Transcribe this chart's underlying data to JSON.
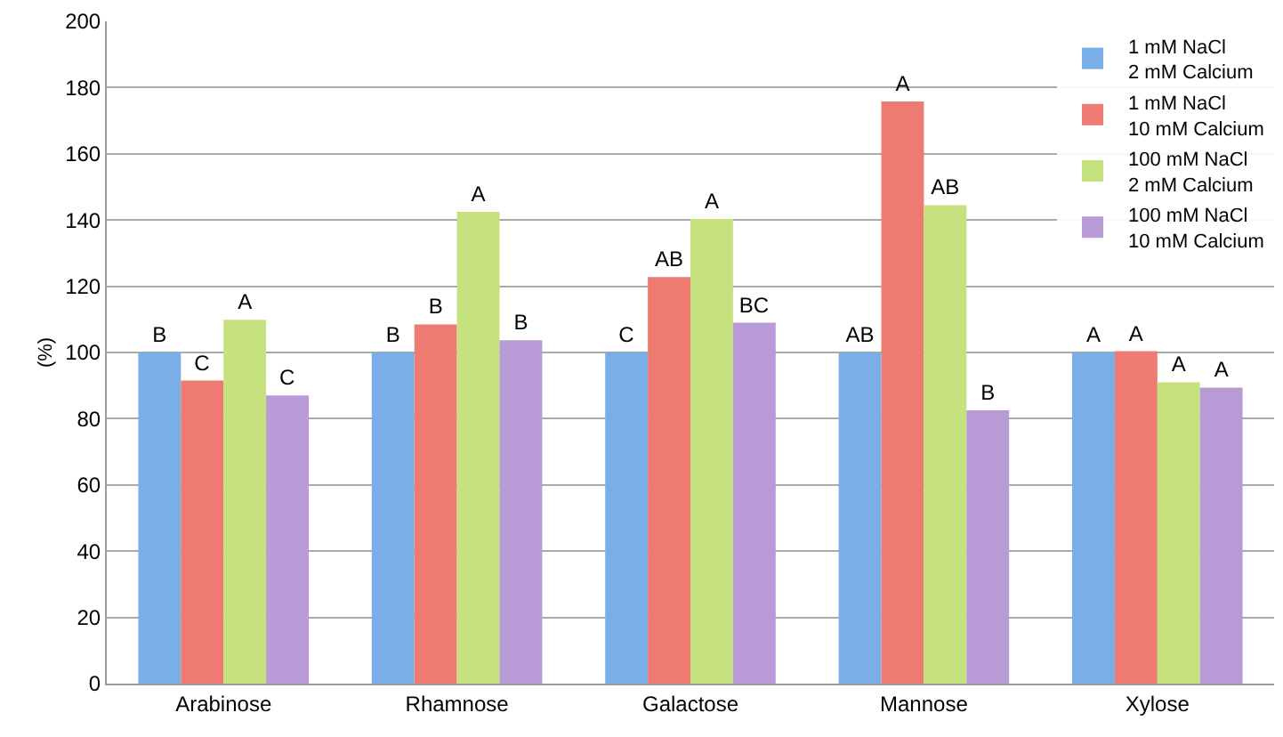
{
  "chart_data": {
    "type": "bar",
    "ylabel": "(%)",
    "categories": [
      "Arabinose",
      "Rhamnose",
      "Galactose",
      "Mannose",
      "Xylose"
    ],
    "series": [
      {
        "name": "1 mM NaCl\n2 mM Calcium",
        "color": "#7aaee8",
        "values": [
          100,
          100,
          100,
          100,
          100
        ],
        "value_labels": [
          "B",
          "B",
          "C",
          "AB",
          "A"
        ]
      },
      {
        "name": "1 mM NaCl\n10 mM Calcium",
        "color": "#ee7b72",
        "values": [
          91.5,
          108.5,
          122.8,
          175.8,
          100.4
        ],
        "value_labels": [
          "C",
          "B",
          "AB",
          "A",
          "A"
        ]
      },
      {
        "name": "100 mM NaCl\n2 mM Calcium",
        "color": "#c6e27e",
        "values": [
          109.9,
          142.5,
          140.3,
          144.5,
          91
        ],
        "value_labels": [
          "A",
          "A",
          "A",
          "AB",
          "A"
        ]
      },
      {
        "name": "100 mM NaCl\n10 mM Calcium",
        "color": "#b79ad6",
        "values": [
          87,
          103.7,
          109,
          82.5,
          89.4
        ],
        "value_labels": [
          "C",
          "B",
          "BC",
          "B",
          "A"
        ]
      }
    ],
    "ylim": [
      0,
      200
    ],
    "yticks": [
      0,
      20,
      40,
      60,
      80,
      100,
      120,
      140,
      160,
      180,
      200
    ],
    "grid": "y",
    "legend": "top right"
  }
}
